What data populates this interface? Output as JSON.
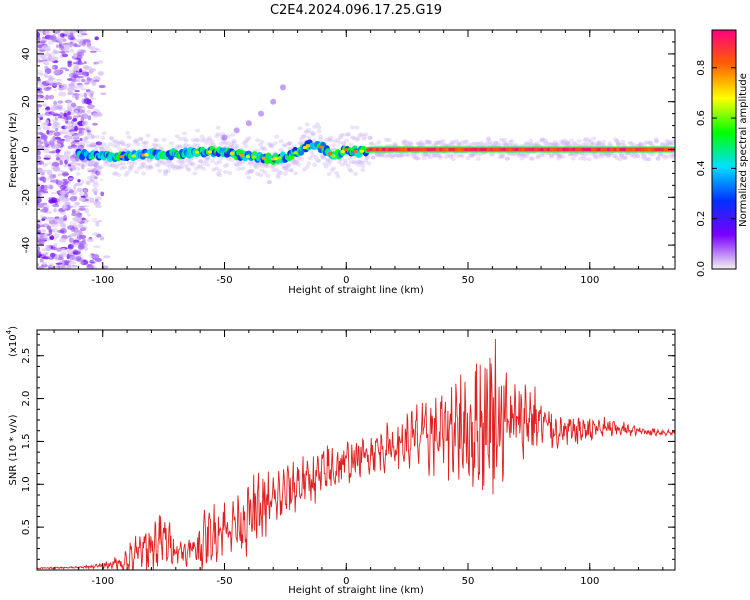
{
  "figure_title": "C2E4.2024.096.17.25.G19",
  "colorbar": {
    "label": "Normalized spectral amplitude",
    "ticks": [
      0.0,
      0.2,
      0.4,
      0.6,
      0.8
    ],
    "tick_labels": [
      "0.0",
      "0.2",
      "0.4",
      "0.6",
      "0.8"
    ],
    "colors": [
      "#f2f2f2",
      "#7a00ff",
      "#0030ff",
      "#00e0ff",
      "#00ff00",
      "#ffff00",
      "#ff6000",
      "#ff0080"
    ]
  },
  "chart_data": [
    {
      "type": "heatmap",
      "title": "",
      "xlabel": "Height of straight line (km)",
      "ylabel": "Frequency (Hz)",
      "xlim": [
        -127,
        135
      ],
      "ylim": [
        -50,
        50
      ],
      "xticks": [
        -100,
        -50,
        0,
        50,
        100
      ],
      "xtick_labels": [
        "-100",
        "-50",
        "0",
        "50",
        "100"
      ],
      "yticks": [
        -40,
        -20,
        0,
        20,
        40
      ],
      "ytick_labels": [
        "-40",
        "-20",
        "0",
        "20",
        "40"
      ],
      "ridge": {
        "x": [
          -110,
          -100,
          -90,
          -80,
          -70,
          -60,
          -50,
          -40,
          -30,
          -25,
          -20,
          -15,
          -10,
          -5,
          0,
          5,
          10,
          20,
          40,
          60,
          80,
          100,
          120,
          135
        ],
        "y": [
          -2,
          -3,
          -3,
          -2,
          -2,
          -1,
          -1,
          -3,
          -4,
          -3,
          -1,
          2,
          1,
          -3,
          0,
          -1,
          0,
          0,
          0,
          0,
          0,
          0,
          0,
          0
        ],
        "peak_amplitude": 0.9
      },
      "side_feature": {
        "x": [
          -50,
          -45,
          -40,
          -35,
          -30,
          -26
        ],
        "y": [
          5,
          8,
          11,
          15,
          20,
          26
        ]
      },
      "noise_region": {
        "x_range": [
          -127,
          -98
        ],
        "y_range": [
          -50,
          50
        ]
      }
    },
    {
      "type": "line",
      "title": "",
      "xlabel": "Height of straight line (km)",
      "ylabel": "SNR (10 * v/v)",
      "y_multiplier_label": "(x10",
      "y_multiplier_exp": "4",
      "xlim": [
        -127,
        135
      ],
      "ylim": [
        0,
        2.8
      ],
      "xticks": [
        -100,
        -50,
        0,
        50,
        100
      ],
      "xtick_labels": [
        "-100",
        "-50",
        "0",
        "50",
        "100"
      ],
      "yticks": [
        0.5,
        1.0,
        1.5,
        2.0,
        2.5
      ],
      "ytick_labels": [
        "0.5",
        "1.0",
        "1.5",
        "2.0",
        "2.5"
      ],
      "series": [
        {
          "color": "#e02020",
          "envelope_x": [
            -127,
            -110,
            -100,
            -90,
            -85,
            -80,
            -75,
            -70,
            -65,
            -60,
            -55,
            -50,
            -45,
            -40,
            -35,
            -30,
            -25,
            -20,
            -15,
            -10,
            -5,
            0,
            5,
            10,
            20,
            30,
            40,
            45,
            50,
            55,
            60,
            65,
            70,
            75,
            80,
            90,
            100,
            110,
            120,
            135
          ],
          "envelope_mean": [
            0.02,
            0.03,
            0.05,
            0.1,
            0.2,
            0.28,
            0.35,
            0.25,
            0.2,
            0.3,
            0.42,
            0.5,
            0.55,
            0.62,
            0.7,
            0.8,
            0.9,
            1.0,
            1.05,
            1.1,
            1.2,
            1.25,
            1.3,
            1.38,
            1.45,
            1.55,
            1.6,
            1.7,
            1.6,
            1.7,
            1.8,
            1.75,
            1.7,
            1.8,
            1.7,
            1.6,
            1.65,
            1.65,
            1.62,
            1.6
          ],
          "envelope_amp": [
            0.01,
            0.01,
            0.03,
            0.15,
            0.25,
            0.3,
            0.3,
            0.15,
            0.15,
            0.3,
            0.3,
            0.3,
            0.35,
            0.4,
            0.4,
            0.35,
            0.3,
            0.3,
            0.25,
            0.3,
            0.3,
            0.25,
            0.2,
            0.25,
            0.25,
            0.4,
            0.45,
            0.6,
            0.65,
            0.8,
            0.9,
            0.7,
            0.5,
            0.4,
            0.3,
            0.2,
            0.15,
            0.1,
            0.05,
            0.03
          ]
        }
      ]
    }
  ]
}
